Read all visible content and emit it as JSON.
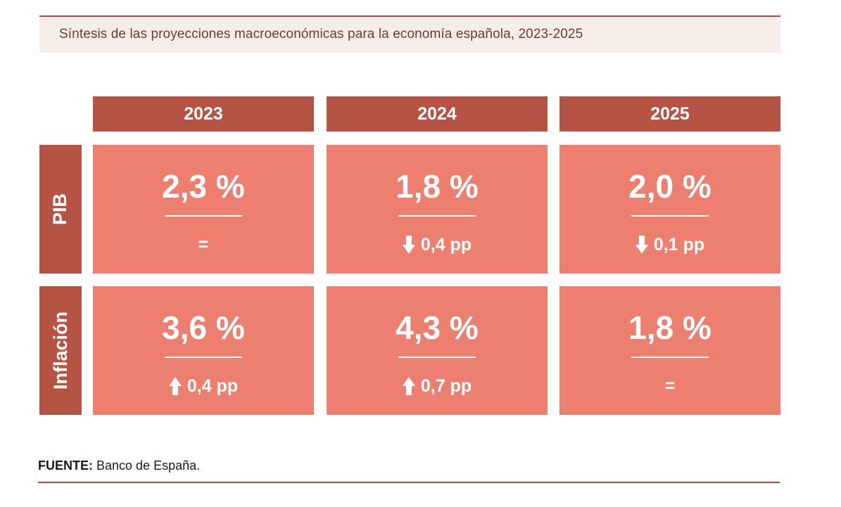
{
  "title": "Síntesis de las proyecciones macroeconómicas para la economía española, 2023-2025",
  "chart_data": {
    "type": "table",
    "columns": [
      "2023",
      "2024",
      "2025"
    ],
    "rows": [
      {
        "label": "PIB",
        "cells": [
          {
            "value": "2,3 %",
            "change": "=",
            "direction": "none"
          },
          {
            "value": "1,8 %",
            "change": "0,4 pp",
            "direction": "down"
          },
          {
            "value": "2,0 %",
            "change": "0,1 pp",
            "direction": "down"
          }
        ]
      },
      {
        "label": "Inflación",
        "cells": [
          {
            "value": "3,6 %",
            "change": "0,4 pp",
            "direction": "up"
          },
          {
            "value": "4,3 %",
            "change": "0,7 pp",
            "direction": "up"
          },
          {
            "value": "1,8 %",
            "change": "=",
            "direction": "none"
          }
        ]
      }
    ]
  },
  "source": {
    "label": "FUENTE:",
    "text": "Banco de España."
  },
  "colors": {
    "header": "#b55444",
    "cell": "#ec7f70",
    "title_bg": "#f6ece8",
    "rule": "#a94a44"
  },
  "icons": {
    "up": "arrow-up-icon",
    "down": "arrow-down-icon"
  }
}
